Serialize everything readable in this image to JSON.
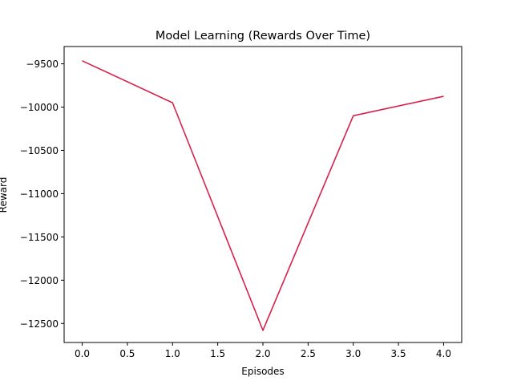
{
  "chart_data": {
    "type": "line",
    "title": "Model Learning (Rewards Over Time)",
    "xlabel": "Episodes",
    "ylabel": "Reward",
    "x": [
      0.0,
      1.0,
      2.0,
      3.0,
      4.0
    ],
    "series": [
      {
        "values": [
          -9465,
          -9950,
          -12580,
          -10100,
          -9875
        ],
        "color": "#d6224a"
      }
    ],
    "xlim": [
      -0.2,
      4.2
    ],
    "ylim": [
      -12720,
      -9300
    ],
    "xticks": [
      0.0,
      0.5,
      1.0,
      1.5,
      2.0,
      2.5,
      3.0,
      3.5,
      4.0
    ],
    "xtick_labels": [
      "0.0",
      "0.5",
      "1.0",
      "1.5",
      "2.0",
      "2.5",
      "3.0",
      "3.5",
      "4.0"
    ],
    "yticks": [
      -9500,
      -10000,
      -10500,
      -11000,
      -11500,
      -12000,
      -12500
    ],
    "ytick_labels": [
      "−9500",
      "−10000",
      "−10500",
      "−11000",
      "−11500",
      "−12000",
      "−12500"
    ],
    "grid": false,
    "legend": "none"
  }
}
